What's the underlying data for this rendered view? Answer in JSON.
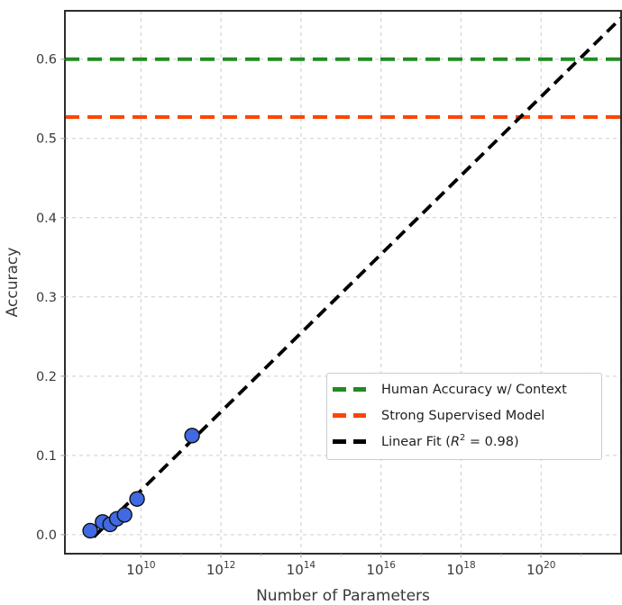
{
  "figure": {
    "background": "#ffffff",
    "spine_color": "#2e2e2e",
    "grid_color": "#cdcdcd",
    "tick_color": "#b0b0b0",
    "tick_label_color": "#3a3a3a",
    "axis_label_color": "#3a3a3a"
  },
  "chart_data": {
    "type": "scatter",
    "title": "",
    "xlabel": "Number of Parameters",
    "ylabel": "Accuracy",
    "x_scale": "log10",
    "x_log10_range": [
      8.1,
      22.0
    ],
    "y_range": [
      -0.024,
      0.661
    ],
    "grid": true,
    "x_tick_base": "10",
    "x_tick_exponents": [
      "10",
      "12",
      "14",
      "16",
      "18",
      "20"
    ],
    "x_tick_exponent_values": [
      10,
      12,
      14,
      16,
      18,
      20
    ],
    "x_minor_tick_exponent_values": [
      9,
      11,
      13,
      15,
      17,
      19,
      21
    ],
    "y_ticks": [
      {
        "value": 0.0,
        "label": "0.0"
      },
      {
        "value": 0.1,
        "label": "0.1"
      },
      {
        "value": 0.2,
        "label": "0.2"
      },
      {
        "value": 0.3,
        "label": "0.3"
      },
      {
        "value": 0.4,
        "label": "0.4"
      },
      {
        "value": 0.5,
        "label": "0.5"
      },
      {
        "value": 0.6,
        "label": "0.6"
      }
    ],
    "scatter": {
      "name": "model-accuracy-points",
      "color": "#4169E1",
      "edge_color": "#111111",
      "marker_radius": 8,
      "points": [
        {
          "params": 540000000,
          "accuracy": 0.005
        },
        {
          "params": 1100000000,
          "accuracy": 0.016
        },
        {
          "params": 1700000000,
          "accuracy": 0.013
        },
        {
          "params": 2500000000,
          "accuracy": 0.02
        },
        {
          "params": 3900000000,
          "accuracy": 0.025
        },
        {
          "params": 8000000000,
          "accuracy": 0.045
        },
        {
          "params": 190000000000,
          "accuracy": 0.125
        }
      ]
    },
    "hlines": [
      {
        "name": "human-accuracy-line",
        "y": 0.6,
        "color": "#228B22",
        "label": "Human Accuracy w/ Context"
      },
      {
        "name": "supervised-model-line",
        "y": 0.527,
        "color": "#FF4500",
        "label": "Strong Supervised Model"
      }
    ],
    "fit_line": {
      "name": "linear-fit-line",
      "color": "#000000",
      "r_squared": 0.98,
      "x1_log10": 8.82,
      "y1": -0.003,
      "x2_log10": 22.0,
      "y2": 0.652
    },
    "legend": {
      "position": "center-right",
      "items": [
        {
          "label": "Human Accuracy w/ Context",
          "color": "#228B22"
        },
        {
          "label": "Strong Supervised Model",
          "color": "#FF4500"
        },
        {
          "label_pre": "Linear Fit (",
          "math_var": "R",
          "math_sup": "2",
          "label_post": " = 0.98)",
          "color": "#000000"
        }
      ]
    }
  }
}
